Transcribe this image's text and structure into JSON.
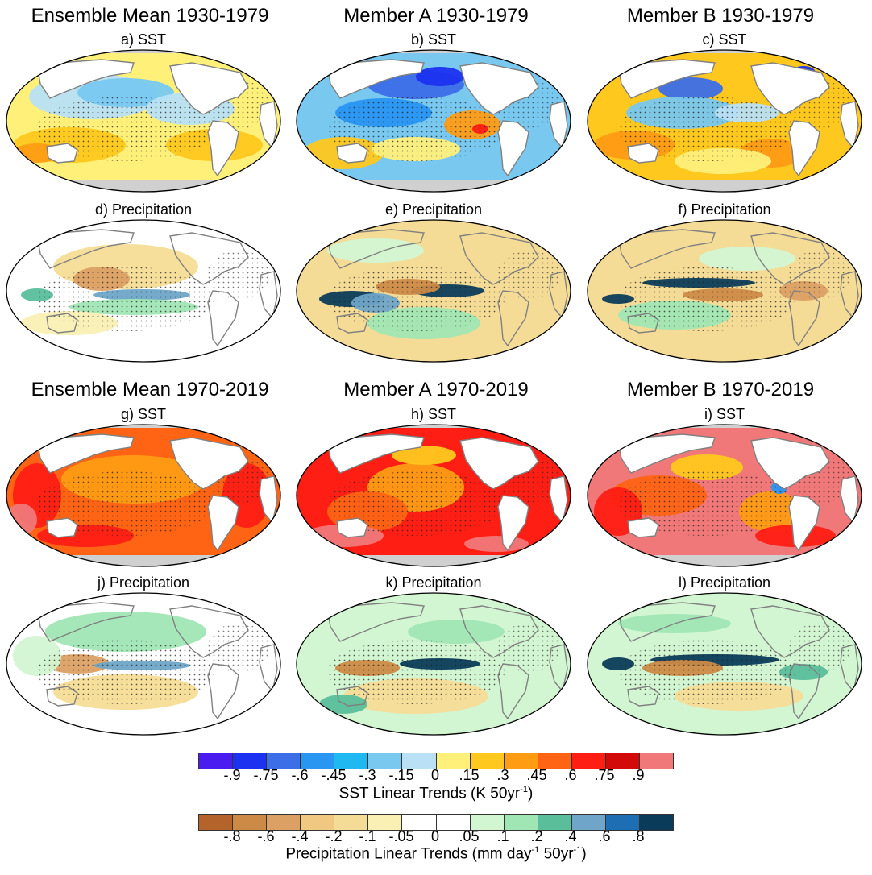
{
  "columns": [
    {
      "title": "Ensemble Mean 1930-1979"
    },
    {
      "title": "Member A 1930-1979"
    },
    {
      "title": "Member B 1930-1979"
    }
  ],
  "columns2": [
    {
      "title": "Ensemble Mean 1970-2019"
    },
    {
      "title": "Member A 1970-2019"
    },
    {
      "title": "Member B 1970-2019"
    }
  ],
  "panels": [
    {
      "label": "a) SST",
      "kind": "sst",
      "scheme": "sst-cool-mean"
    },
    {
      "label": "b) SST",
      "kind": "sst",
      "scheme": "sst-cool-a"
    },
    {
      "label": "c) SST",
      "kind": "sst",
      "scheme": "sst-cool-b"
    },
    {
      "label": "d) Precipitation",
      "kind": "precip",
      "scheme": "pr-mean"
    },
    {
      "label": "e) Precipitation",
      "kind": "precip",
      "scheme": "pr-a"
    },
    {
      "label": "f) Precipitation",
      "kind": "precip",
      "scheme": "pr-b"
    },
    {
      "label": "g) SST",
      "kind": "sst",
      "scheme": "sst-warm-mean"
    },
    {
      "label": "h) SST",
      "kind": "sst",
      "scheme": "sst-warm-a"
    },
    {
      "label": "i) SST",
      "kind": "sst",
      "scheme": "sst-warm-b"
    },
    {
      "label": "j) Precipitation",
      "kind": "precip",
      "scheme": "pr-mean2"
    },
    {
      "label": "k) Precipitation",
      "kind": "precip",
      "scheme": "pr-a2"
    },
    {
      "label": "l) Precipitation",
      "kind": "precip",
      "scheme": "pr-b2"
    }
  ],
  "sst_colorbar": {
    "colors": [
      "#4b1cf0",
      "#1c32f0",
      "#3c6ee8",
      "#2996f2",
      "#1fb8f0",
      "#78c8f0",
      "#b9e0f5",
      "#fff07a",
      "#ffc81e",
      "#ff9c14",
      "#ff6414",
      "#ff1e14",
      "#d20a0a",
      "#f07878"
    ],
    "ticks": [
      "-.9",
      "-.75",
      "-.6",
      "-.45",
      "-.3",
      "-.15",
      "0",
      ".15",
      ".3",
      ".45",
      ".6",
      ".75",
      ".9"
    ],
    "title_main": "SST Linear Trends (K 50yr",
    "title_sup": "-1",
    "title_end": ")"
  },
  "precip_colorbar": {
    "colors": [
      "#b4642a",
      "#cd8a46",
      "#dca064",
      "#f0c882",
      "#f5dc96",
      "#faf0b4",
      "#ffffff",
      "#ffffff",
      "#d2f5d2",
      "#a0e6b4",
      "#5abe9b",
      "#6ea5c8",
      "#1e6eb4",
      "#0a3c5a"
    ],
    "ticks": [
      "-.8",
      "-.6",
      "-.4",
      "-.2",
      "-.1",
      "-.05",
      "0",
      ".05",
      ".1",
      ".2",
      ".4",
      ".6",
      ".8"
    ],
    "title_main": "Precipitation Linear Trends (mm day",
    "title_sup1": "-1",
    "title_mid": " 50yr",
    "title_sup2": "-1",
    "title_end": ")"
  }
}
